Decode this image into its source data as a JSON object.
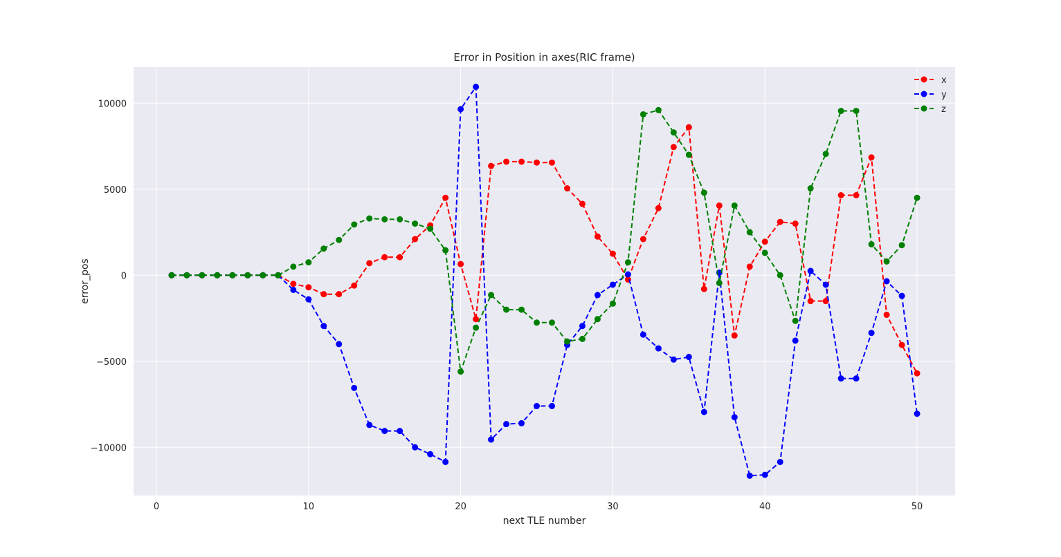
{
  "chart_data": {
    "type": "line",
    "title": "Error in Position in axes(RIC frame)",
    "xlabel": "next TLE number",
    "ylabel": "error_pos",
    "xlim": [
      -1.5,
      52.5
    ],
    "ylim": [
      -12800,
      12100
    ],
    "x_ticks": [
      0,
      10,
      20,
      30,
      40,
      50
    ],
    "y_ticks": [
      -10000,
      -5000,
      0,
      5000,
      10000
    ],
    "y_tick_labels": [
      "−10000",
      "−5000",
      "0",
      "5000",
      "10000"
    ],
    "grid": true,
    "legend_position": "top-right",
    "background": "#eaeaf2",
    "x": [
      1,
      2,
      3,
      4,
      5,
      6,
      7,
      8,
      9,
      10,
      11,
      12,
      13,
      14,
      15,
      16,
      17,
      18,
      19,
      20,
      21,
      22,
      23,
      24,
      25,
      26,
      27,
      28,
      29,
      30,
      31,
      32,
      33,
      34,
      35,
      36,
      37,
      38,
      39,
      40,
      41,
      42,
      43,
      44,
      45,
      46,
      47,
      48,
      49,
      50
    ],
    "series": [
      {
        "name": "x",
        "color": "#ff0000",
        "values": [
          0,
          0,
          0,
          0,
          0,
          0,
          0,
          0,
          -500,
          -700,
          -1100,
          -1100,
          -600,
          700,
          1050,
          1050,
          2100,
          2900,
          4500,
          650,
          -2550,
          6350,
          6600,
          6600,
          6550,
          6550,
          5050,
          4150,
          2250,
          1250,
          -250,
          2100,
          3900,
          7450,
          8600,
          -800,
          4050,
          -3500,
          500,
          1950,
          3100,
          3000,
          -1500,
          -1500,
          4650,
          4650,
          6850,
          -2300,
          -4050,
          -5700
        ]
      },
      {
        "name": "y",
        "color": "#0000ff",
        "values": [
          0,
          0,
          0,
          0,
          0,
          0,
          0,
          0,
          -850,
          -1400,
          -2950,
          -4000,
          -6550,
          -8700,
          -9050,
          -9050,
          -10000,
          -10400,
          -10850,
          9650,
          10950,
          -9550,
          -8650,
          -8600,
          -7600,
          -7600,
          -4050,
          -2950,
          -1150,
          -550,
          50,
          -3450,
          -4250,
          -4900,
          -4750,
          -7950,
          150,
          -8250,
          -11650,
          -11600,
          -10850,
          -3800,
          250,
          -550,
          -6000,
          -6000,
          -3350,
          -350,
          -1200,
          -8050
        ]
      },
      {
        "name": "z",
        "color": "#008000",
        "values": [
          0,
          0,
          0,
          0,
          0,
          0,
          0,
          0,
          500,
          750,
          1550,
          2050,
          2950,
          3300,
          3250,
          3250,
          3000,
          2700,
          1450,
          -5600,
          -3050,
          -1150,
          -2000,
          -2000,
          -2750,
          -2750,
          -3850,
          -3700,
          -2550,
          -1650,
          750,
          9350,
          9600,
          8300,
          7000,
          4800,
          -450,
          4050,
          2500,
          1300,
          0,
          -2650,
          5050,
          7050,
          9550,
          9550,
          1800,
          800,
          1750,
          4500
        ]
      }
    ]
  }
}
